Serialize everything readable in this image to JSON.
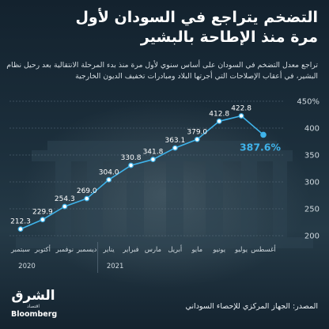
{
  "title_line1": "التضخم يتراجع في السودان لأول",
  "title_line2": "مرة منذ الإطاحة بالبشير",
  "subtitle": "تراجع معدل التضخم في السودان على أساس سنوي لأول مرة منذ بدء المرحلة الانتقالية بعد رحيل نظام البشير، في أعقاب الإصلاحات التي أجرتها البلاد ومبادرات تخفيف الديون الخارجية",
  "source": "المصدر: الجهاز المركزي للإحصاء السوداني",
  "logo": {
    "arabic": "الشرق",
    "sub": "اقتصاد",
    "english": "Bloomberg"
  },
  "colors": {
    "line": "#3fb3ea",
    "grid": "#5d7180",
    "text": "#ffffff",
    "label": "#cfd8de",
    "highlight": "#3fb3ea"
  },
  "chart_data": {
    "type": "line",
    "categories": [
      "سبتمبر",
      "أكتوبر",
      "نوفمبر",
      "ديسمبر",
      "يناير",
      "فبراير",
      "مارس",
      "أبريل",
      "مايو",
      "يونيو",
      "يوليو",
      "أغسطس"
    ],
    "values": [
      212.3,
      229.9,
      254.3,
      269.0,
      304.0,
      330.8,
      341.8,
      363.1,
      379.0,
      412.8,
      422.8,
      387.6
    ],
    "data_labels": [
      "212.3",
      "229.9",
      "254.3",
      "269.0",
      "304.0",
      "330.8",
      "341.8",
      "363.1",
      "379.0",
      "412.8",
      "422.8",
      "387.6%"
    ],
    "highlight_index": 11,
    "ylim": [
      200,
      450
    ],
    "yticks": [
      200,
      250,
      300,
      350,
      400,
      450
    ],
    "ytick_labels": [
      "200",
      "250",
      "300",
      "350",
      "400",
      "450%"
    ],
    "year_labels": [
      {
        "label": "2020",
        "start": 0,
        "end": 3
      },
      {
        "label": "2021",
        "start": 4,
        "end": 11
      }
    ],
    "grid": true
  }
}
